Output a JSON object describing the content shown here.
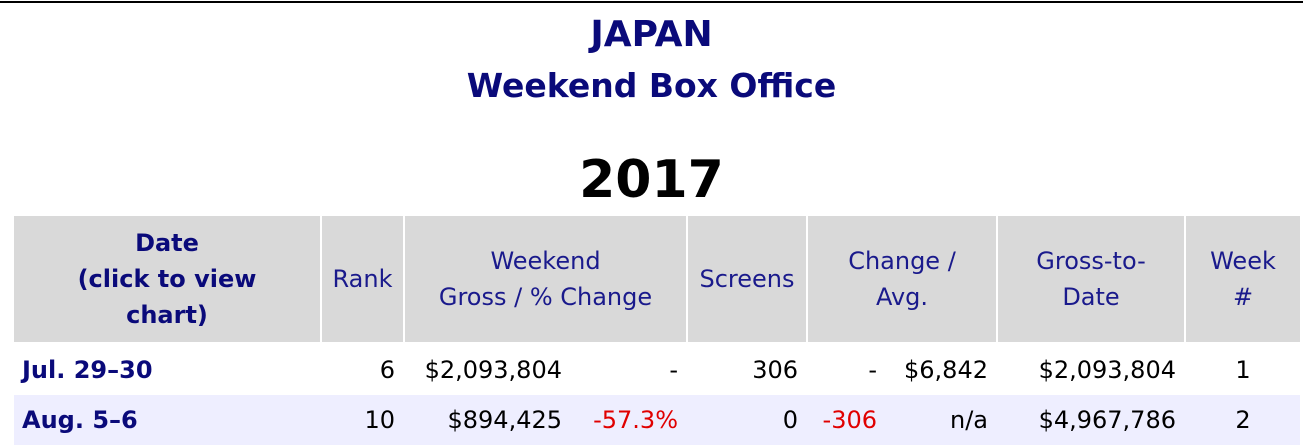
{
  "header": {
    "title": "JAPAN",
    "subtitle": "Weekend Box Office"
  },
  "year": "2017",
  "table": {
    "header": [
      [
        "Date",
        "(click to view",
        "chart)"
      ],
      [
        "Rank"
      ],
      [
        "Weekend",
        "Gross / % Change"
      ],
      [
        "Screens"
      ],
      [
        "Change /",
        "Avg."
      ],
      [
        "Gross-to-",
        "Date"
      ],
      [
        "Week",
        "#"
      ]
    ],
    "rows": [
      [
        "Jul. 29–30",
        "6",
        "$2,093,804",
        "-",
        "306",
        "-",
        "$6,842",
        "$2,093,804",
        "1"
      ],
      [
        "Aug. 5–6",
        "10",
        "$894,425",
        "-57.3%",
        "0",
        "-306",
        "n/a",
        "$4,967,786",
        "2"
      ]
    ]
  }
}
